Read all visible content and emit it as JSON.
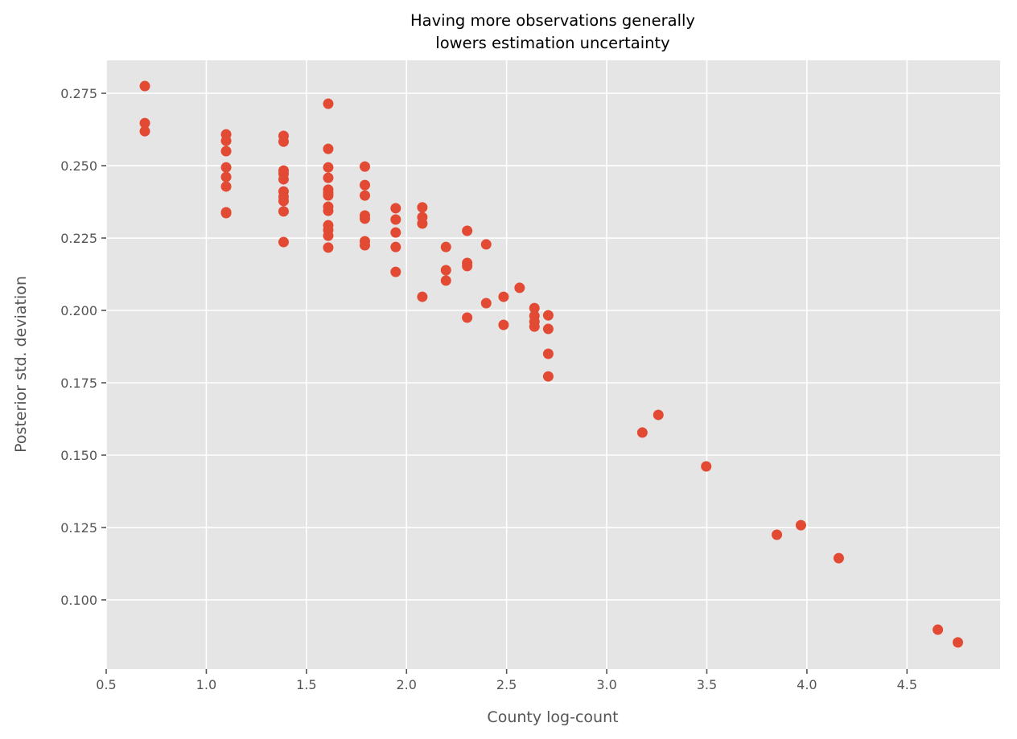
{
  "chart_data": {
    "type": "scatter",
    "title_lines": [
      "Having more observations generally",
      "lowers estimation uncertainty"
    ],
    "xlabel": "County log-count",
    "ylabel": "Posterior std. deviation",
    "xlim": [
      0.5,
      4.965
    ],
    "ylim": [
      0.0761,
      0.2864
    ],
    "xticks": [
      0.5,
      1.0,
      1.5,
      2.0,
      2.5,
      3.0,
      3.5,
      4.0,
      4.5
    ],
    "xtick_labels": [
      "0.5",
      "1.0",
      "1.5",
      "2.0",
      "2.5",
      "3.0",
      "3.5",
      "4.0",
      "4.5"
    ],
    "yticks": [
      0.1,
      0.125,
      0.15,
      0.175,
      0.2,
      0.225,
      0.25,
      0.275
    ],
    "ytick_labels": [
      "0.100",
      "0.125",
      "0.150",
      "0.175",
      "0.200",
      "0.225",
      "0.250",
      "0.275"
    ],
    "grid": true,
    "colors": {
      "background": "#E5E5E5",
      "grid": "#FFFFFF",
      "points": "#E24A33"
    },
    "points": [
      [
        0.693,
        0.2775
      ],
      [
        0.693,
        0.2647
      ],
      [
        0.693,
        0.2619
      ],
      [
        1.099,
        0.2608
      ],
      [
        1.099,
        0.2586
      ],
      [
        1.099,
        0.255
      ],
      [
        1.099,
        0.2494
      ],
      [
        1.099,
        0.2461
      ],
      [
        1.099,
        0.2428
      ],
      [
        1.099,
        0.2339
      ],
      [
        1.099,
        0.2336
      ],
      [
        1.386,
        0.2603
      ],
      [
        1.386,
        0.2583
      ],
      [
        1.386,
        0.2483
      ],
      [
        1.386,
        0.2472
      ],
      [
        1.386,
        0.2453
      ],
      [
        1.386,
        0.2411
      ],
      [
        1.386,
        0.2392
      ],
      [
        1.386,
        0.2378
      ],
      [
        1.386,
        0.2342
      ],
      [
        1.386,
        0.2236
      ],
      [
        1.609,
        0.2714
      ],
      [
        1.609,
        0.2558
      ],
      [
        1.609,
        0.2494
      ],
      [
        1.609,
        0.2458
      ],
      [
        1.609,
        0.2417
      ],
      [
        1.609,
        0.2406
      ],
      [
        1.609,
        0.2397
      ],
      [
        1.609,
        0.2358
      ],
      [
        1.609,
        0.2344
      ],
      [
        1.609,
        0.2294
      ],
      [
        1.609,
        0.2278
      ],
      [
        1.609,
        0.2258
      ],
      [
        1.609,
        0.2217
      ],
      [
        1.792,
        0.2497
      ],
      [
        1.792,
        0.2433
      ],
      [
        1.792,
        0.2397
      ],
      [
        1.792,
        0.2328
      ],
      [
        1.792,
        0.2317
      ],
      [
        1.792,
        0.2239
      ],
      [
        1.792,
        0.2225
      ],
      [
        1.946,
        0.2353
      ],
      [
        1.946,
        0.2314
      ],
      [
        1.946,
        0.2269
      ],
      [
        1.946,
        0.2219
      ],
      [
        1.946,
        0.2133
      ],
      [
        2.079,
        0.2356
      ],
      [
        2.079,
        0.2322
      ],
      [
        2.079,
        0.23
      ],
      [
        2.079,
        0.2047
      ],
      [
        2.197,
        0.2219
      ],
      [
        2.197,
        0.2139
      ],
      [
        2.197,
        0.2103
      ],
      [
        2.303,
        0.2275
      ],
      [
        2.303,
        0.2164
      ],
      [
        2.303,
        0.2153
      ],
      [
        2.303,
        0.1975
      ],
      [
        2.398,
        0.2228
      ],
      [
        2.398,
        0.2025
      ],
      [
        2.485,
        0.2047
      ],
      [
        2.485,
        0.195
      ],
      [
        2.565,
        0.2078
      ],
      [
        2.639,
        0.2008
      ],
      [
        2.639,
        0.1981
      ],
      [
        2.639,
        0.1961
      ],
      [
        2.639,
        0.1944
      ],
      [
        2.708,
        0.1983
      ],
      [
        2.708,
        0.1936
      ],
      [
        2.708,
        0.185
      ],
      [
        2.708,
        0.1772
      ],
      [
        3.178,
        0.1578
      ],
      [
        3.258,
        0.1639
      ],
      [
        3.497,
        0.1461
      ],
      [
        3.85,
        0.1225
      ],
      [
        3.97,
        0.1258
      ],
      [
        4.159,
        0.1144
      ],
      [
        4.654,
        0.0897
      ],
      [
        4.754,
        0.0853
      ]
    ]
  }
}
